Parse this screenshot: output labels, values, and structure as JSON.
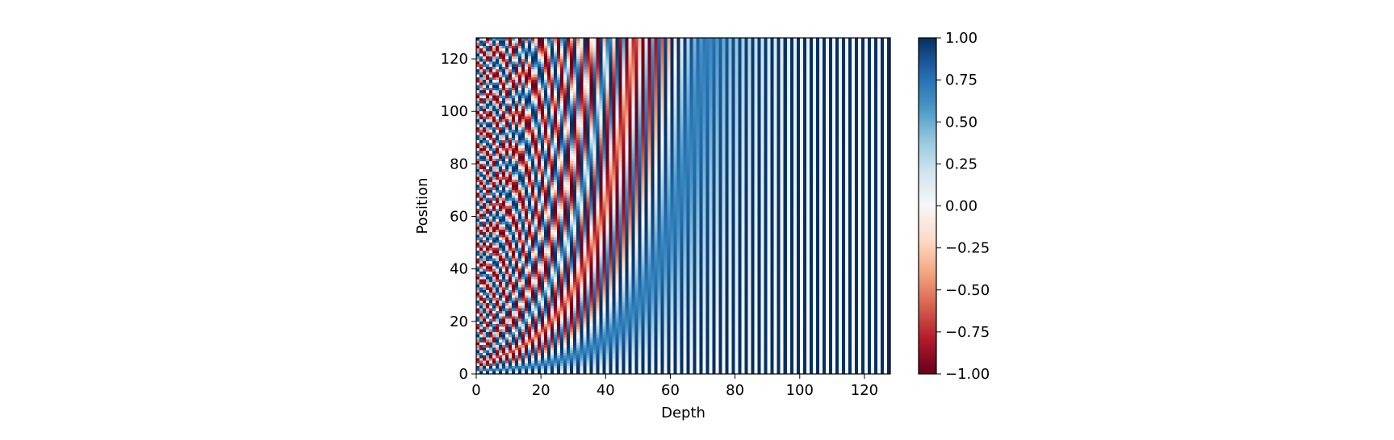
{
  "chart_data": {
    "type": "heatmap",
    "title": "",
    "xlabel": "Depth",
    "ylabel": "Position",
    "xlim": [
      0,
      128
    ],
    "ylim": [
      0,
      128
    ],
    "rows": 128,
    "cols": 128,
    "formula": "sin(pos / 10000^(2i/128)) for even depth 2i, cos(pos / 10000^(2i/128)) for odd depth 2i+1",
    "base": 10000,
    "x_ticks": [
      "0",
      "20",
      "40",
      "60",
      "80",
      "100",
      "120"
    ],
    "x_tick_values": [
      0,
      20,
      40,
      60,
      80,
      100,
      120
    ],
    "y_ticks": [
      "0",
      "20",
      "40",
      "60",
      "80",
      "100",
      "120"
    ],
    "y_tick_values": [
      0,
      20,
      40,
      60,
      80,
      100,
      120
    ],
    "colormap": "RdBu",
    "colormap_stops": [
      "#67001f",
      "#b2182b",
      "#d6604d",
      "#f4a582",
      "#fddbc7",
      "#f7f7f7",
      "#d1e5f0",
      "#92c5de",
      "#4393c3",
      "#2166ac",
      "#053061"
    ],
    "colorbar": {
      "min": -1.0,
      "max": 1.0,
      "ticks": [
        "1.00",
        "0.75",
        "0.50",
        "0.25",
        "0.00",
        "−0.25",
        "−0.50",
        "−0.75",
        "−1.00"
      ],
      "tick_values": [
        1.0,
        0.75,
        0.5,
        0.25,
        0.0,
        -0.25,
        -0.5,
        -0.75,
        -1.0
      ]
    },
    "grid": false,
    "legend": "none"
  }
}
